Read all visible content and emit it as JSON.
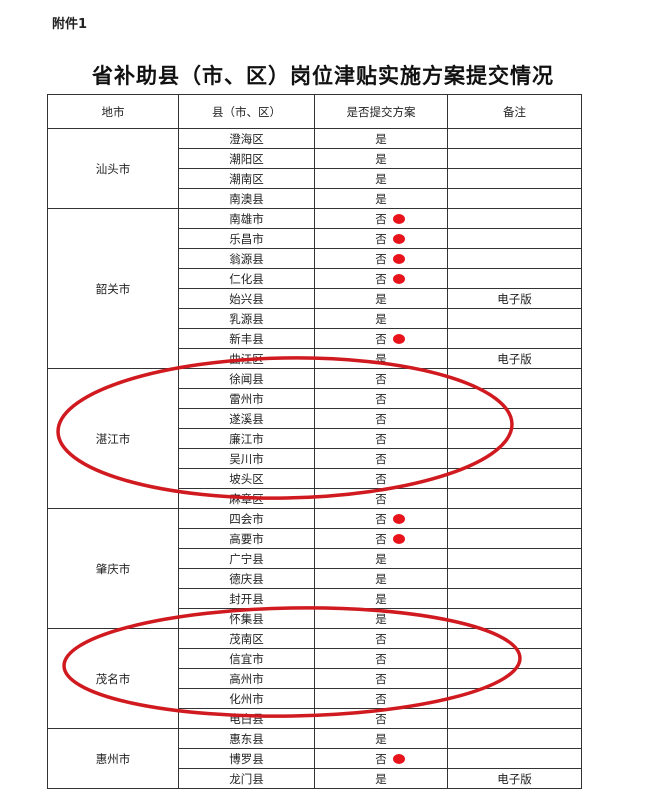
{
  "attachment_label": "附件1",
  "title": "省补助县（市、区）岗位津贴实施方案提交情况",
  "table": {
    "headers": [
      "地市",
      "县（市、区）",
      "是否提交方案",
      "备注"
    ],
    "groups": [
      {
        "city": "汕头市",
        "rows": [
          {
            "county": "澄海区",
            "submitted": "是",
            "note": ""
          },
          {
            "county": "潮阳区",
            "submitted": "是",
            "note": ""
          },
          {
            "county": "潮南区",
            "submitted": "是",
            "note": ""
          },
          {
            "county": "南澳县",
            "submitted": "是",
            "note": ""
          }
        ]
      },
      {
        "city": "韶关市",
        "rows": [
          {
            "county": "南雄市",
            "submitted": "否",
            "note": "",
            "red_dot": true
          },
          {
            "county": "乐昌市",
            "submitted": "否",
            "note": "",
            "red_dot": true
          },
          {
            "county": "翁源县",
            "submitted": "否",
            "note": "",
            "red_dot": true
          },
          {
            "county": "仁化县",
            "submitted": "否",
            "note": "",
            "red_dot": true
          },
          {
            "county": "始兴县",
            "submitted": "是",
            "note": "电子版"
          },
          {
            "county": "乳源县",
            "submitted": "是",
            "note": ""
          },
          {
            "county": "新丰县",
            "submitted": "否",
            "note": "",
            "red_dot": true
          },
          {
            "county": "曲江区",
            "submitted": "是",
            "note": "电子版"
          }
        ]
      },
      {
        "city": "湛江市",
        "circled": true,
        "rows": [
          {
            "county": "徐闻县",
            "submitted": "否",
            "note": ""
          },
          {
            "county": "雷州市",
            "submitted": "否",
            "note": ""
          },
          {
            "county": "遂溪县",
            "submitted": "否",
            "note": ""
          },
          {
            "county": "廉江市",
            "submitted": "否",
            "note": ""
          },
          {
            "county": "吴川市",
            "submitted": "否",
            "note": ""
          },
          {
            "county": "坡头区",
            "submitted": "否",
            "note": ""
          },
          {
            "county": "麻章区",
            "submitted": "否",
            "note": ""
          }
        ]
      },
      {
        "city": "肇庆市",
        "rows": [
          {
            "county": "四会市",
            "submitted": "否",
            "note": "",
            "red_dot": true
          },
          {
            "county": "高要市",
            "submitted": "否",
            "note": "",
            "red_dot": true
          },
          {
            "county": "广宁县",
            "submitted": "是",
            "note": ""
          },
          {
            "county": "德庆县",
            "submitted": "是",
            "note": ""
          },
          {
            "county": "封开县",
            "submitted": "是",
            "note": ""
          },
          {
            "county": "怀集县",
            "submitted": "是",
            "note": ""
          }
        ]
      },
      {
        "city": "茂名市",
        "circled": true,
        "rows": [
          {
            "county": "茂南区",
            "submitted": "否",
            "note": ""
          },
          {
            "county": "信宜市",
            "submitted": "否",
            "note": ""
          },
          {
            "county": "高州市",
            "submitted": "否",
            "note": ""
          },
          {
            "county": "化州市",
            "submitted": "否",
            "note": ""
          },
          {
            "county": "电白县",
            "submitted": "否",
            "note": ""
          }
        ]
      },
      {
        "city": "惠州市",
        "rows": [
          {
            "county": "惠东县",
            "submitted": "是",
            "note": ""
          },
          {
            "county": "博罗县",
            "submitted": "否",
            "note": "",
            "red_dot": true
          },
          {
            "county": "龙门县",
            "submitted": "是",
            "note": "电子版"
          }
        ]
      }
    ]
  },
  "colors": {
    "annotation_red": "#d01a1f",
    "dot_red": "#e8141b"
  }
}
